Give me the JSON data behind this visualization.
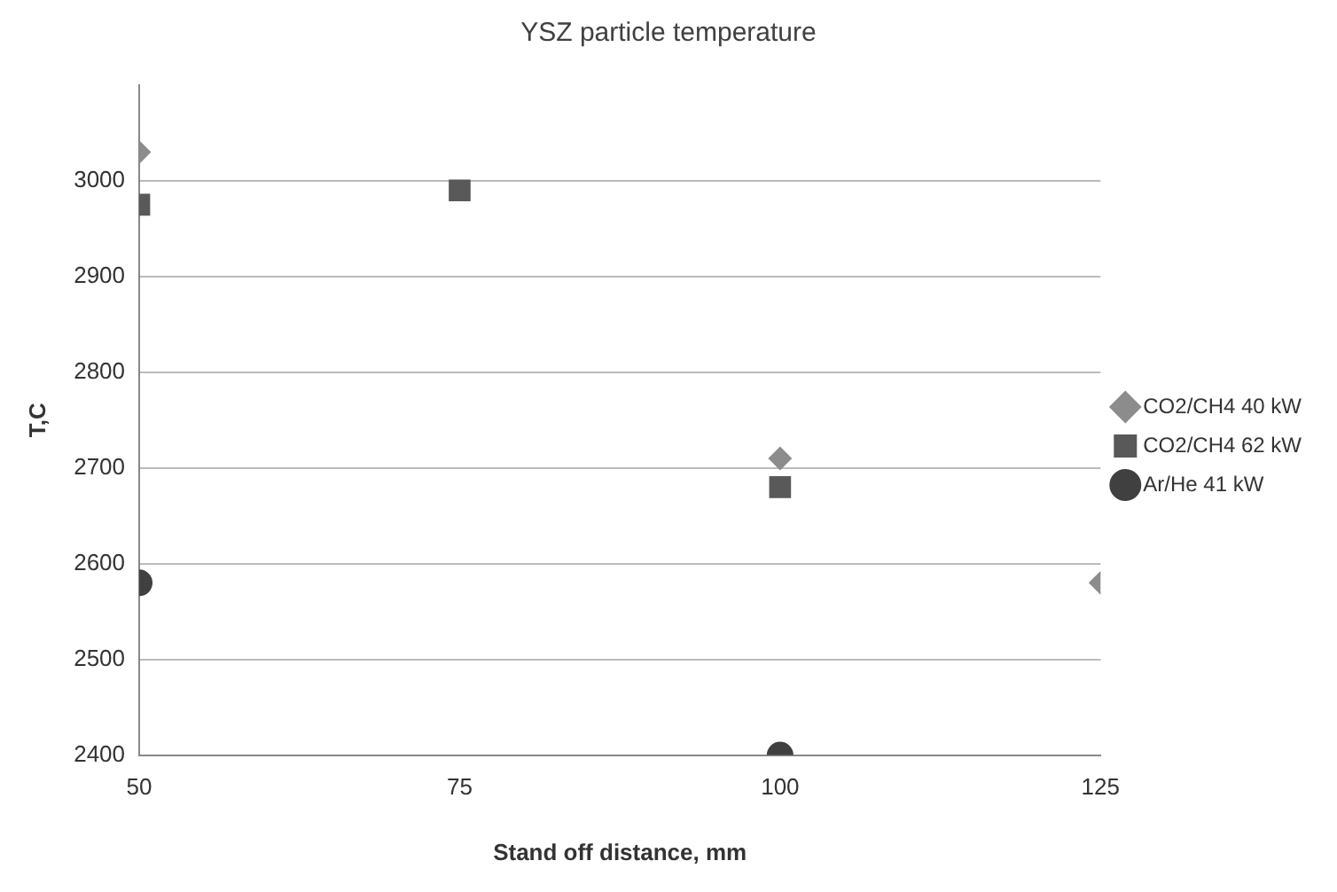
{
  "chart_data": {
    "type": "scatter",
    "title": "YSZ particle temperature",
    "xlabel": "Stand off distance, mm",
    "ylabel": "T,C",
    "series": [
      {
        "name": "CO2/CH4 40 kW",
        "color": "#8c8c8c",
        "marker": "diamond",
        "x": [
          50,
          100,
          125
        ],
        "values": [
          3030,
          2710,
          2580
        ]
      },
      {
        "name": "CO2/CH4 62 kW",
        "color": "#595959",
        "marker": "square",
        "x": [
          50,
          75,
          100
        ],
        "values": [
          2975,
          2990,
          2680
        ]
      },
      {
        "name": "Ar/He 41 kW",
        "color": "#404040",
        "marker": "circle",
        "x": [
          50,
          100
        ],
        "values": [
          2580,
          2400
        ]
      }
    ],
    "xlim": [
      50,
      125
    ],
    "xticks": [
      50,
      75,
      100,
      125
    ],
    "ylim": [
      2400,
      3100
    ],
    "yticks": [
      2400,
      2500,
      2600,
      2700,
      2800,
      2900,
      3000
    ],
    "grid": "y",
    "legend": "right"
  }
}
